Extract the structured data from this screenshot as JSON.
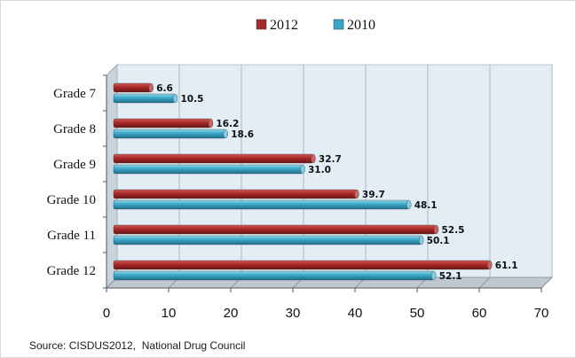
{
  "chart_data": {
    "type": "bar",
    "orientation": "horizontal",
    "categories": [
      "Grade 7",
      "Grade 8",
      "Grade 9",
      "Grade 10",
      "Grade 11",
      "Grade 12"
    ],
    "series": [
      {
        "name": "2012",
        "values": [
          6.6,
          16.2,
          32.7,
          39.7,
          52.5,
          61.1
        ],
        "labels": [
          "6.6",
          "16.2",
          "32.7",
          "39.7",
          "52.5",
          "61.1"
        ],
        "color": "#a52a2a"
      },
      {
        "name": "2010",
        "values": [
          10.5,
          18.6,
          31.0,
          48.1,
          50.1,
          52.1
        ],
        "labels": [
          "10.5",
          "18.6",
          "31.0",
          "48.1",
          "50.1",
          "52.1"
        ],
        "color": "#3aa6c6"
      }
    ],
    "xlim": [
      0,
      70
    ],
    "xticks": [
      "0",
      "10",
      "20",
      "30",
      "40",
      "50",
      "60",
      "70"
    ],
    "grid": true,
    "legend_position": "top-center",
    "source": "Source: CISDUS2012,  National Drug Council"
  }
}
